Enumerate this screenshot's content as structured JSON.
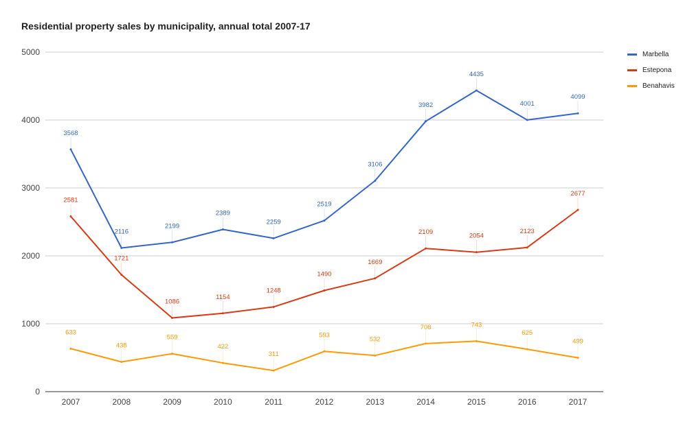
{
  "chart_data": {
    "type": "line",
    "title": "Residential property sales by municipality, annual total 2007-17",
    "xlabel": "",
    "ylabel": "",
    "categories": [
      "2007",
      "2008",
      "2009",
      "2010",
      "2011",
      "2012",
      "2013",
      "2014",
      "2015",
      "2016",
      "2017"
    ],
    "ylim": [
      0,
      5000
    ],
    "yticks": [
      0,
      1000,
      2000,
      3000,
      4000,
      5000
    ],
    "grid": true,
    "legend_position": "right",
    "data_labels": true,
    "series": [
      {
        "name": "Marbella",
        "color": "#3366cc",
        "values": [
          3568,
          2116,
          2199,
          2389,
          2259,
          2519,
          3106,
          3982,
          4435,
          4001,
          4099
        ]
      },
      {
        "name": "Estepona",
        "color": "#dc3912",
        "values": [
          2581,
          1721,
          1086,
          1154,
          1248,
          1490,
          1669,
          2109,
          2054,
          2123,
          2677
        ]
      },
      {
        "name": "Benahavis",
        "color": "#ff9900",
        "values": [
          633,
          438,
          559,
          422,
          311,
          593,
          532,
          708,
          743,
          625,
          499
        ]
      }
    ]
  }
}
